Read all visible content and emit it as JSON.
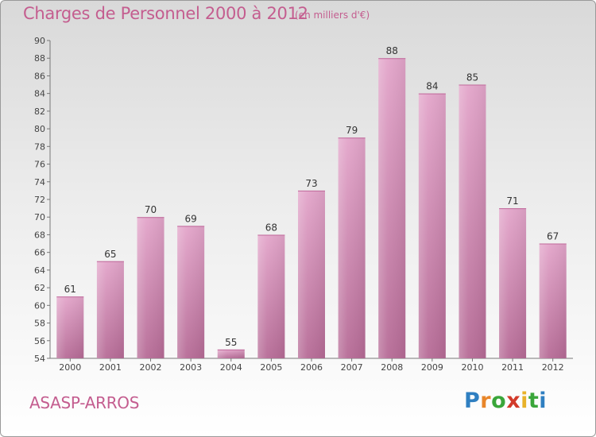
{
  "title": "Charges de Personnel 2000 à 2012",
  "subtitle": "(en milliers d'€)",
  "commune": "ASASP-ARROS",
  "logo": {
    "letters": [
      "P",
      "r",
      "o",
      "x",
      "i",
      "t",
      "i"
    ],
    "colors": [
      "#2f7fc1",
      "#e8862a",
      "#3aa63a",
      "#d23a2a",
      "#e8b22a",
      "#3aa63a",
      "#2f7fc1"
    ]
  },
  "colors": {
    "bar": "#cf7fae",
    "title": "#c45d8f",
    "label": "#333333"
  },
  "chart_data": {
    "type": "bar",
    "categories": [
      "2000",
      "2001",
      "2002",
      "2003",
      "2004",
      "2005",
      "2006",
      "2007",
      "2008",
      "2009",
      "2010",
      "2011",
      "2012"
    ],
    "values": [
      61,
      65,
      70,
      69,
      55,
      68,
      73,
      79,
      88,
      84,
      85,
      71,
      67
    ],
    "ylim": [
      54,
      90
    ],
    "yticks": [
      54,
      56,
      58,
      60,
      62,
      64,
      66,
      68,
      70,
      72,
      74,
      76,
      78,
      80,
      82,
      84,
      86,
      88,
      90
    ],
    "grid": false,
    "title": "Charges de Personnel 2000 à 2012",
    "subtitle": "(en milliers d'€)"
  }
}
